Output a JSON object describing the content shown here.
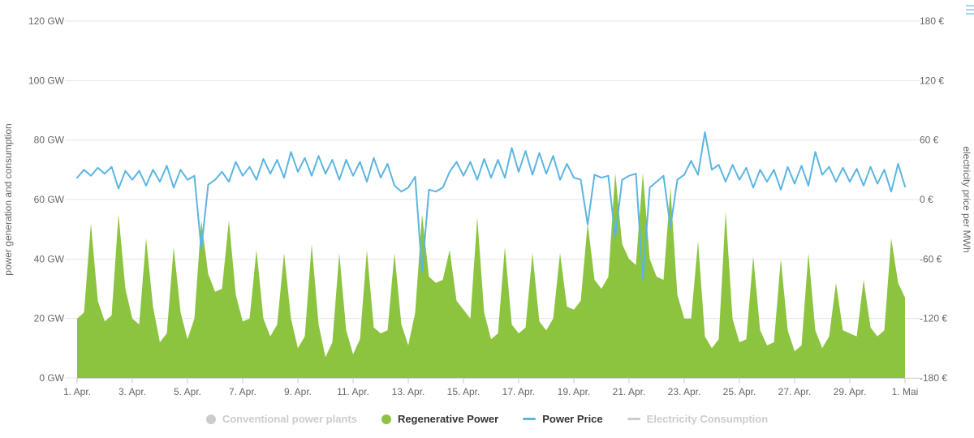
{
  "chart": {
    "legend": {
      "items": [
        {
          "label": "Conventional power plants",
          "symbol": "circle",
          "color": "#cccccc",
          "text_color": "#cccccc",
          "enabled": false
        },
        {
          "label": "Regenerative Power",
          "symbol": "circle",
          "color": "#8cc43f",
          "text_color": "#333333",
          "enabled": true
        },
        {
          "label": "Power Price",
          "symbol": "line",
          "color": "#5bb5e2",
          "text_color": "#333333",
          "enabled": true
        },
        {
          "label": "Electricity Consumption",
          "symbol": "line",
          "color": "#cccccc",
          "text_color": "#cccccc",
          "enabled": false
        }
      ]
    },
    "menu_icon_color": "#a8d4ef"
  },
  "chart_data": {
    "type": "combo",
    "grid": true,
    "legend_position": "bottom",
    "x_axis": {
      "tick_labels": [
        "1. Apr.",
        "3. Apr.",
        "5. Apr.",
        "7. Apr.",
        "9. Apr.",
        "11. Apr.",
        "13. Apr.",
        "15. Apr.",
        "17. Apr.",
        "19. Apr.",
        "21. Apr.",
        "23. Apr.",
        "25. Apr.",
        "27. Apr.",
        "29. Apr.",
        "1. Mai"
      ],
      "tick_day_positions": [
        0,
        2,
        4,
        6,
        8,
        10,
        12,
        14,
        16,
        18,
        20,
        22,
        24,
        26,
        28,
        30
      ],
      "range_days": [
        0,
        30
      ]
    },
    "y_axis_left": {
      "title": "power generation and consumption",
      "tick_labels": [
        "0 GW",
        "20 GW",
        "40 GW",
        "60 GW",
        "80 GW",
        "100 GW",
        "120 GW"
      ],
      "tick_values": [
        0,
        20,
        40,
        60,
        80,
        100,
        120
      ],
      "range": [
        0,
        120
      ]
    },
    "y_axis_right": {
      "title": "electricity price per MWh",
      "tick_labels": [
        "-180 €",
        "-120 €",
        "-60 €",
        "0 €",
        "60 €",
        "120 €",
        "180 €"
      ],
      "tick_values": [
        -180,
        -120,
        -60,
        0,
        60,
        120,
        180
      ],
      "range": [
        -180,
        180
      ]
    },
    "series": [
      {
        "name": "Regenerative Power",
        "type": "area",
        "axis": "left",
        "unit": "GW",
        "color": "#8cc43f",
        "x_start_day": 0,
        "x_step_days": 0.25,
        "values": [
          20,
          22,
          52,
          26,
          19,
          21,
          55,
          30,
          20,
          18,
          47,
          24,
          12,
          15,
          44,
          22,
          13,
          20,
          53,
          35,
          29,
          30,
          53,
          28,
          19,
          20,
          43,
          20,
          14,
          18,
          42,
          20,
          10,
          14,
          45,
          18,
          7,
          12,
          42,
          16,
          8,
          13,
          43,
          17,
          15,
          16,
          42,
          18,
          11,
          22,
          55,
          34,
          32,
          33,
          43,
          26,
          23,
          20,
          54,
          22,
          13,
          15,
          44,
          18,
          15,
          17,
          42,
          19,
          16,
          20,
          42,
          24,
          23,
          26,
          52,
          33,
          30,
          34,
          69,
          45,
          40,
          38,
          69,
          40,
          34,
          33,
          64,
          28,
          20,
          20,
          46,
          14,
          10,
          13,
          56,
          20,
          12,
          13,
          41,
          16,
          11,
          12,
          40,
          16,
          9,
          11,
          42,
          16,
          10,
          14,
          32,
          16,
          15,
          14,
          33,
          17,
          14,
          16,
          47,
          32,
          27
        ]
      },
      {
        "name": "Power Price",
        "type": "line",
        "axis": "right",
        "unit": "EUR/MWh",
        "color": "#5bb5e2",
        "x_start_day": 0,
        "x_step_days": 0.25,
        "values": [
          22,
          30,
          24,
          32,
          26,
          33,
          11,
          29,
          20,
          29,
          14,
          30,
          18,
          34,
          12,
          30,
          20,
          24,
          -50,
          15,
          20,
          28,
          18,
          38,
          24,
          33,
          20,
          41,
          26,
          40,
          22,
          48,
          28,
          42,
          24,
          44,
          26,
          40,
          20,
          40,
          24,
          38,
          18,
          42,
          22,
          36,
          14,
          8,
          12,
          23,
          -73,
          10,
          8,
          12,
          28,
          38,
          24,
          38,
          20,
          41,
          22,
          40,
          22,
          52,
          28,
          49,
          25,
          47,
          26,
          44,
          20,
          36,
          22,
          20,
          -25,
          25,
          22,
          24,
          -38,
          20,
          24,
          26,
          -81,
          12,
          18,
          24,
          -28,
          20,
          25,
          39,
          25,
          68,
          30,
          35,
          18,
          35,
          20,
          32,
          12,
          30,
          18,
          30,
          10,
          33,
          16,
          34,
          14,
          48,
          25,
          33,
          18,
          32,
          18,
          31,
          14,
          33,
          16,
          30,
          8,
          36,
          13
        ]
      }
    ]
  }
}
